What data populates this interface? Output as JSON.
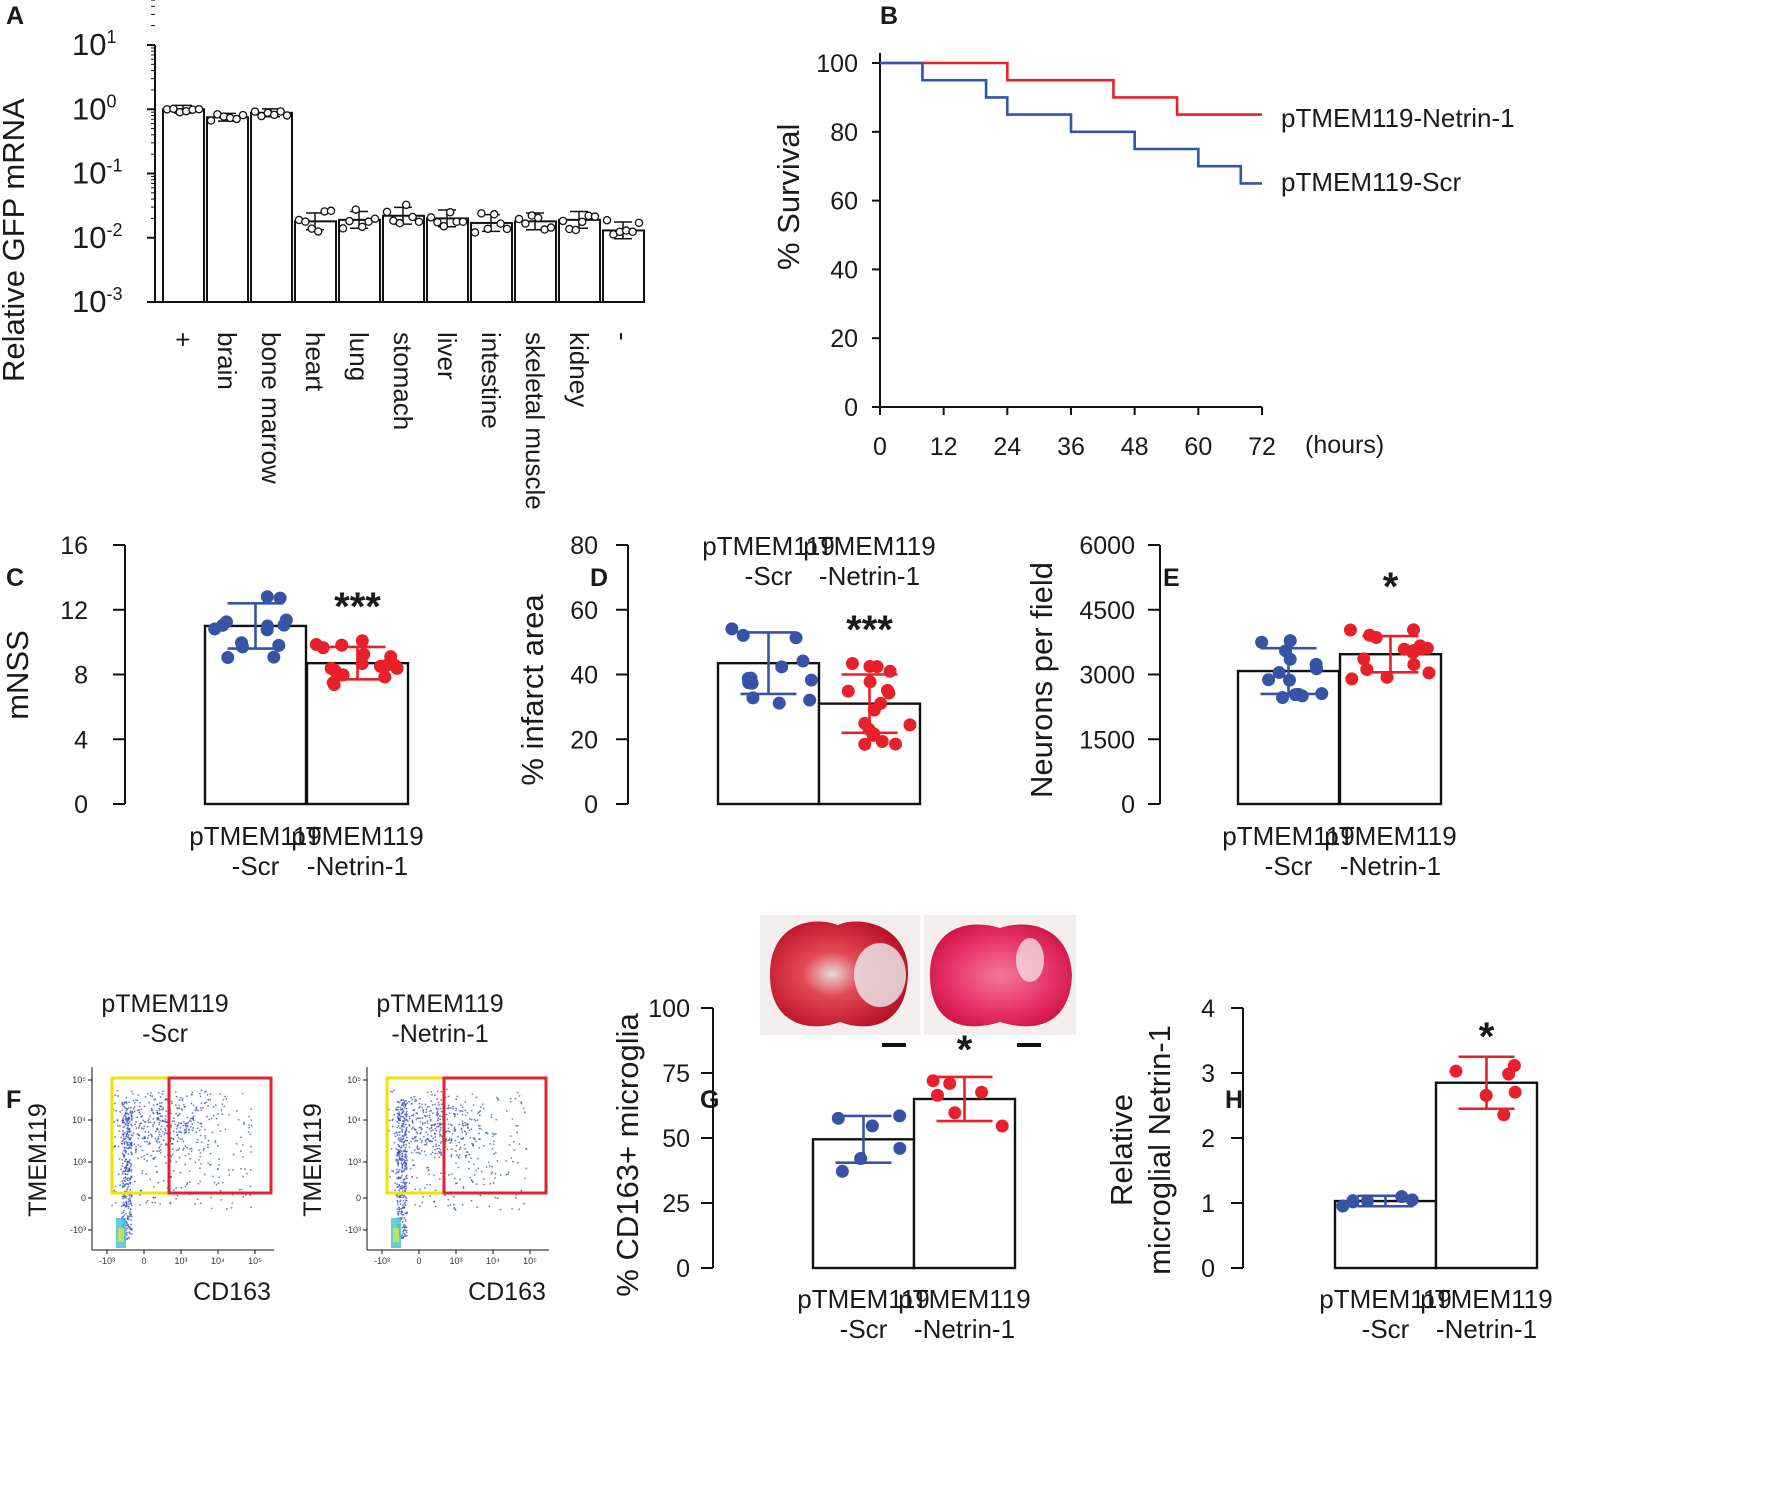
{
  "panels": {
    "A": "A",
    "B": "B",
    "C": "C",
    "D": "D",
    "E": "E",
    "F": "F",
    "G": "G",
    "H": "H"
  },
  "chart_data": [
    {
      "id": "A",
      "type": "bar",
      "scale": "log",
      "ylabel": "Relative GFP mRNA",
      "ytick_exponents": [
        "1",
        "0",
        "-1",
        "-2",
        "-3"
      ],
      "ytick_base": "10",
      "categories": [
        "+",
        "brain",
        "bone marrow",
        "heart",
        "lung",
        "stomach",
        "liver",
        "intestine",
        "skeletal muscle",
        "kidney",
        "-"
      ],
      "values": [
        1.0,
        0.75,
        0.88,
        0.018,
        0.019,
        0.022,
        0.02,
        0.017,
        0.018,
        0.019,
        0.013
      ]
    },
    {
      "id": "B",
      "type": "line",
      "ylabel": "% Survival",
      "xunit": "(hours)",
      "xticks": [
        "0",
        "12",
        "24",
        "36",
        "48",
        "60",
        "72"
      ],
      "yticks": [
        "0",
        "20",
        "40",
        "60",
        "80",
        "100"
      ],
      "xlim": [
        0,
        72
      ],
      "ylim": [
        0,
        100
      ],
      "series": [
        {
          "name": "pTMEM119-Netrin-1",
          "color": "#e8202a",
          "steps": [
            [
              0,
              100
            ],
            [
              24,
              95
            ],
            [
              44,
              90
            ],
            [
              56,
              85
            ],
            [
              72,
              85
            ]
          ]
        },
        {
          "name": "pTMEM119-Scr",
          "color": "#3753a6",
          "steps": [
            [
              0,
              100
            ],
            [
              8,
              95
            ],
            [
              20,
              90
            ],
            [
              24,
              85
            ],
            [
              36,
              80
            ],
            [
              48,
              75
            ],
            [
              60,
              70
            ],
            [
              68,
              65
            ],
            [
              72,
              65
            ]
          ]
        }
      ]
    },
    {
      "id": "C",
      "type": "bar",
      "ylabel": "mNSS",
      "yticks": [
        "0",
        "4",
        "8",
        "12",
        "16"
      ],
      "ylim": [
        0,
        16
      ],
      "categories": [
        "pTMEM119\n-Scr",
        "pTMEM119\n-Netrin-1"
      ],
      "values": [
        11.0,
        8.7
      ],
      "sd": [
        1.4,
        1.0
      ],
      "significance": "***"
    },
    {
      "id": "D",
      "type": "bar",
      "ylabel": "% infarct area",
      "yticks": [
        "0",
        "20",
        "40",
        "60",
        "80"
      ],
      "ylim": [
        0,
        80
      ],
      "categories": [
        "pTMEM119\n-Scr",
        "pTMEM119\n-Netrin-1"
      ],
      "values": [
        43.5,
        31.0
      ],
      "sd": [
        9.5,
        9.0
      ],
      "significance": "***"
    },
    {
      "id": "E",
      "type": "bar",
      "ylabel": "Neurons per field",
      "yticks": [
        "0",
        "1500",
        "3000",
        "4500",
        "6000"
      ],
      "ylim": [
        0,
        6000
      ],
      "categories": [
        "pTMEM119\n-Scr",
        "pTMEM119\n-Netrin-1"
      ],
      "values": [
        3080,
        3470
      ],
      "sd": [
        530,
        420
      ],
      "significance": "*"
    },
    {
      "id": "F",
      "type": "scatter",
      "xlabel": "CD163",
      "ylabel": "TMEM119",
      "groups": [
        "pTMEM119\n-Scr",
        "pTMEM119\n-Netrin-1"
      ]
    },
    {
      "id": "G",
      "type": "bar",
      "ylabel": "% CD163+ microglia",
      "yticks": [
        "0",
        "25",
        "50",
        "75",
        "100"
      ],
      "ylim": [
        0,
        100
      ],
      "categories": [
        "pTMEM119\n-Scr",
        "pTMEM119\n-Netrin-1"
      ],
      "values": [
        49.5,
        65.0
      ],
      "sd": [
        9.0,
        8.5
      ],
      "significance": "*"
    },
    {
      "id": "H",
      "type": "bar",
      "ylabel": "Relative\nmicroglial Netrin-1",
      "yticks": [
        "0",
        "1",
        "2",
        "3",
        "4"
      ],
      "ylim": [
        0,
        4
      ],
      "categories": [
        "pTMEM119\n-Scr",
        "pTMEM119\n-Netrin-1"
      ],
      "values": [
        1.03,
        2.85
      ],
      "sd": [
        0.08,
        0.4
      ],
      "significance": "*"
    }
  ],
  "colors": {
    "scr": "#3753a6",
    "netrin": "#e8202a"
  }
}
